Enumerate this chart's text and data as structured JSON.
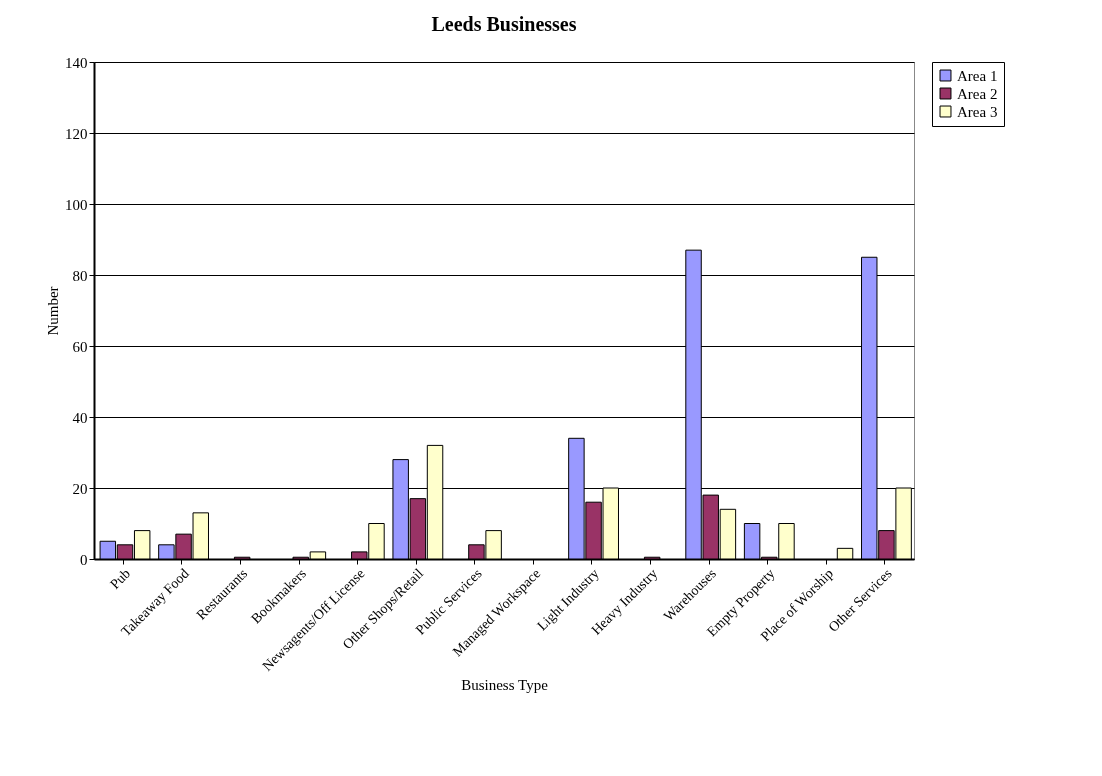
{
  "chart_data": {
    "type": "bar",
    "title": "Leeds Businesses",
    "xlabel": "Business Type",
    "ylabel": "Number",
    "categories": [
      "Pub",
      "Takeaway Food",
      "Restaurants",
      "Bookmakers",
      "Newsagents/Off License",
      "Other Shops/Retail",
      "Public Services",
      "Managed Workspace",
      "Light Industry",
      "Heavy Industry",
      "Warehouses",
      "Empty Property",
      "Place of Worship",
      "Other Services"
    ],
    "series": [
      {
        "name": "Area 1",
        "color": "#9999ff",
        "values": [
          5,
          4,
          null,
          null,
          null,
          28,
          null,
          null,
          34,
          null,
          87,
          10,
          null,
          85
        ]
      },
      {
        "name": "Area 2",
        "color": "#993366",
        "values": [
          4,
          7,
          0.5,
          0.5,
          2,
          17,
          4,
          null,
          16,
          0.5,
          18,
          0.5,
          null,
          8
        ]
      },
      {
        "name": "Area 3",
        "color": "#ffffcc",
        "values": [
          8,
          13,
          null,
          2,
          10,
          32,
          8,
          null,
          20,
          null,
          14,
          10,
          3,
          20
        ]
      }
    ],
    "ylim": [
      0,
      140
    ],
    "yticks": [
      0,
      20,
      40,
      60,
      80,
      100,
      120,
      140
    ],
    "grid": "y",
    "legend": "right"
  }
}
